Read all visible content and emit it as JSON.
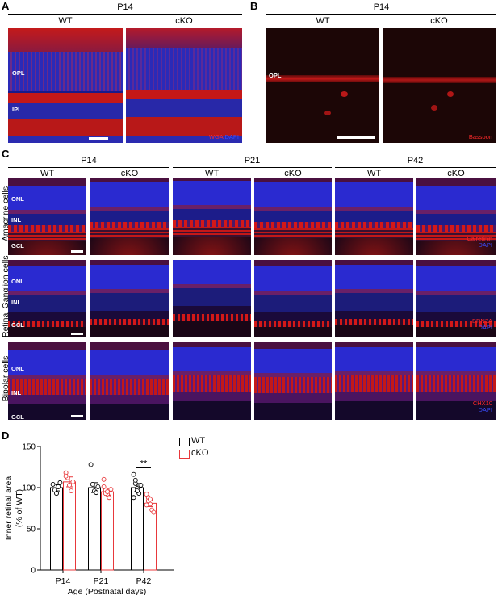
{
  "panels": {
    "a": {
      "label": "A",
      "age": "P14",
      "cols": [
        "WT",
        "cKO"
      ],
      "layers": [
        "OPL",
        "IPL"
      ],
      "markers": [
        {
          "text": "WGA",
          "color": "#ff2a2a"
        },
        {
          "text": "DAPI",
          "color": "#3a4dff"
        }
      ]
    },
    "b": {
      "label": "B",
      "age": "P14",
      "cols": [
        "WT",
        "cKO"
      ],
      "layers": [
        "OPL"
      ],
      "markers": [
        {
          "text": "Bassoon",
          "color": "#ff2a2a"
        }
      ]
    },
    "c": {
      "label": "C",
      "ages": [
        "P14",
        "P21",
        "P42"
      ],
      "cols": [
        "WT",
        "cKO",
        "WT",
        "cKO",
        "WT",
        "cKO"
      ],
      "rows": [
        {
          "label": "Amacrine cells",
          "layers": [
            "ONL",
            "INL",
            "GCL"
          ],
          "markers": [
            {
              "text": "Calretinin",
              "color": "#ff2a2a"
            },
            {
              "text": "DAPI",
              "color": "#3a4dff"
            }
          ]
        },
        {
          "label": "Retinal Ganglion cells",
          "layers": [
            "ONL",
            "INL",
            "GCL"
          ],
          "markers": [
            {
              "text": "BRN3A",
              "color": "#ff2a2a"
            },
            {
              "text": "DAPI",
              "color": "#3a4dff"
            }
          ]
        },
        {
          "label": "Bipolar cells",
          "layers": [
            "ONL",
            "INL",
            "GCL"
          ],
          "markers": [
            {
              "text": "CHX10",
              "color": "#ff2a2a"
            },
            {
              "text": "DAPI",
              "color": "#3a4dff"
            }
          ]
        }
      ]
    },
    "d": {
      "label": "D"
    }
  },
  "colors": {
    "wt": "#000000",
    "cko": "#e8383b",
    "red_stain": "#d41818",
    "blue_stain": "#2a2ad0"
  },
  "chart_data": {
    "type": "bar",
    "categories": [
      "P14",
      "P21",
      "P42"
    ],
    "xlabel": "Age (Postnatal days)",
    "ylabel": "Inner retinal area\n(% of WT)",
    "ylim": [
      0,
      150
    ],
    "yticks": [
      0,
      50,
      100,
      150
    ],
    "legend": "top-right",
    "series": [
      {
        "name": "WT",
        "values": [
          100,
          100,
          100
        ],
        "errors": [
          4,
          6,
          5
        ],
        "points": [
          [
            104,
            97,
            93,
            101,
            106
          ],
          [
            128,
            104,
            96,
            94,
            101
          ],
          [
            116,
            105,
            99,
            93,
            103,
            88,
            109,
            96
          ]
        ]
      },
      {
        "name": "cKO",
        "values": [
          107,
          95,
          81
        ],
        "errors": [
          6,
          4,
          4
        ],
        "points": [
          [
            118,
            112,
            103,
            96,
            107,
            114
          ],
          [
            110,
            97,
            92,
            88,
            98,
            101,
            93,
            95
          ],
          [
            92,
            88,
            80,
            73,
            70,
            79,
            84,
            86
          ]
        ]
      }
    ],
    "annotations": [
      {
        "category": "P42",
        "text": "**"
      }
    ]
  }
}
